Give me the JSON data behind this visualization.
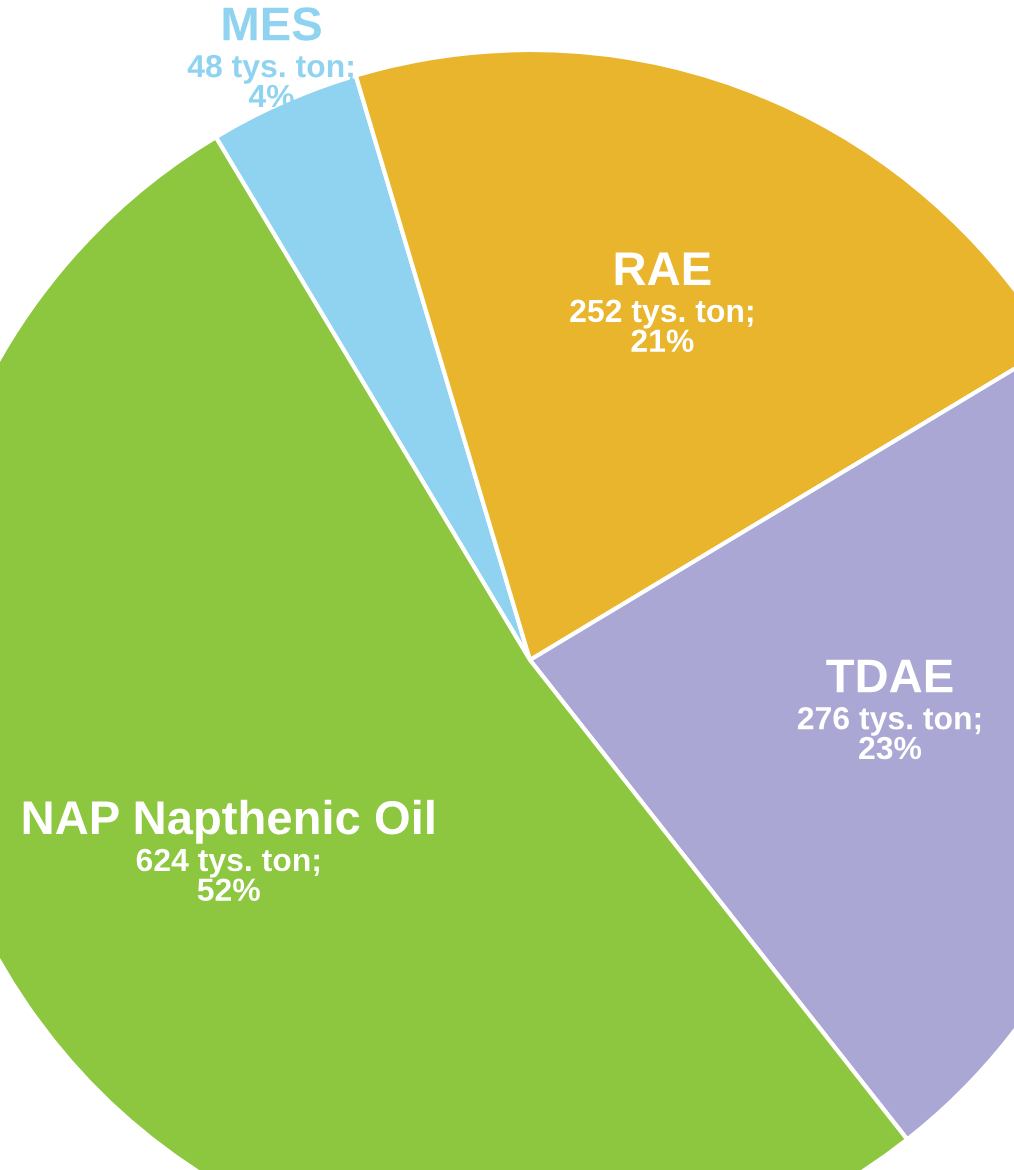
{
  "chart_data": {
    "type": "pie",
    "categories": [
      "MES",
      "RAE",
      "TDAE",
      "NAP Napthenic Oil"
    ],
    "values": [
      48,
      252,
      276,
      624
    ],
    "colors": [
      "#8fd3f0",
      "#e9b52c",
      "#aaa7d4",
      "#8dc63f"
    ],
    "value_labels": [
      "48 tys. ton;\n4%",
      "252 tys. ton;\n21%",
      "276 tys. ton;\n23%",
      "624 tys. ton;\n52%"
    ],
    "legend": false
  }
}
